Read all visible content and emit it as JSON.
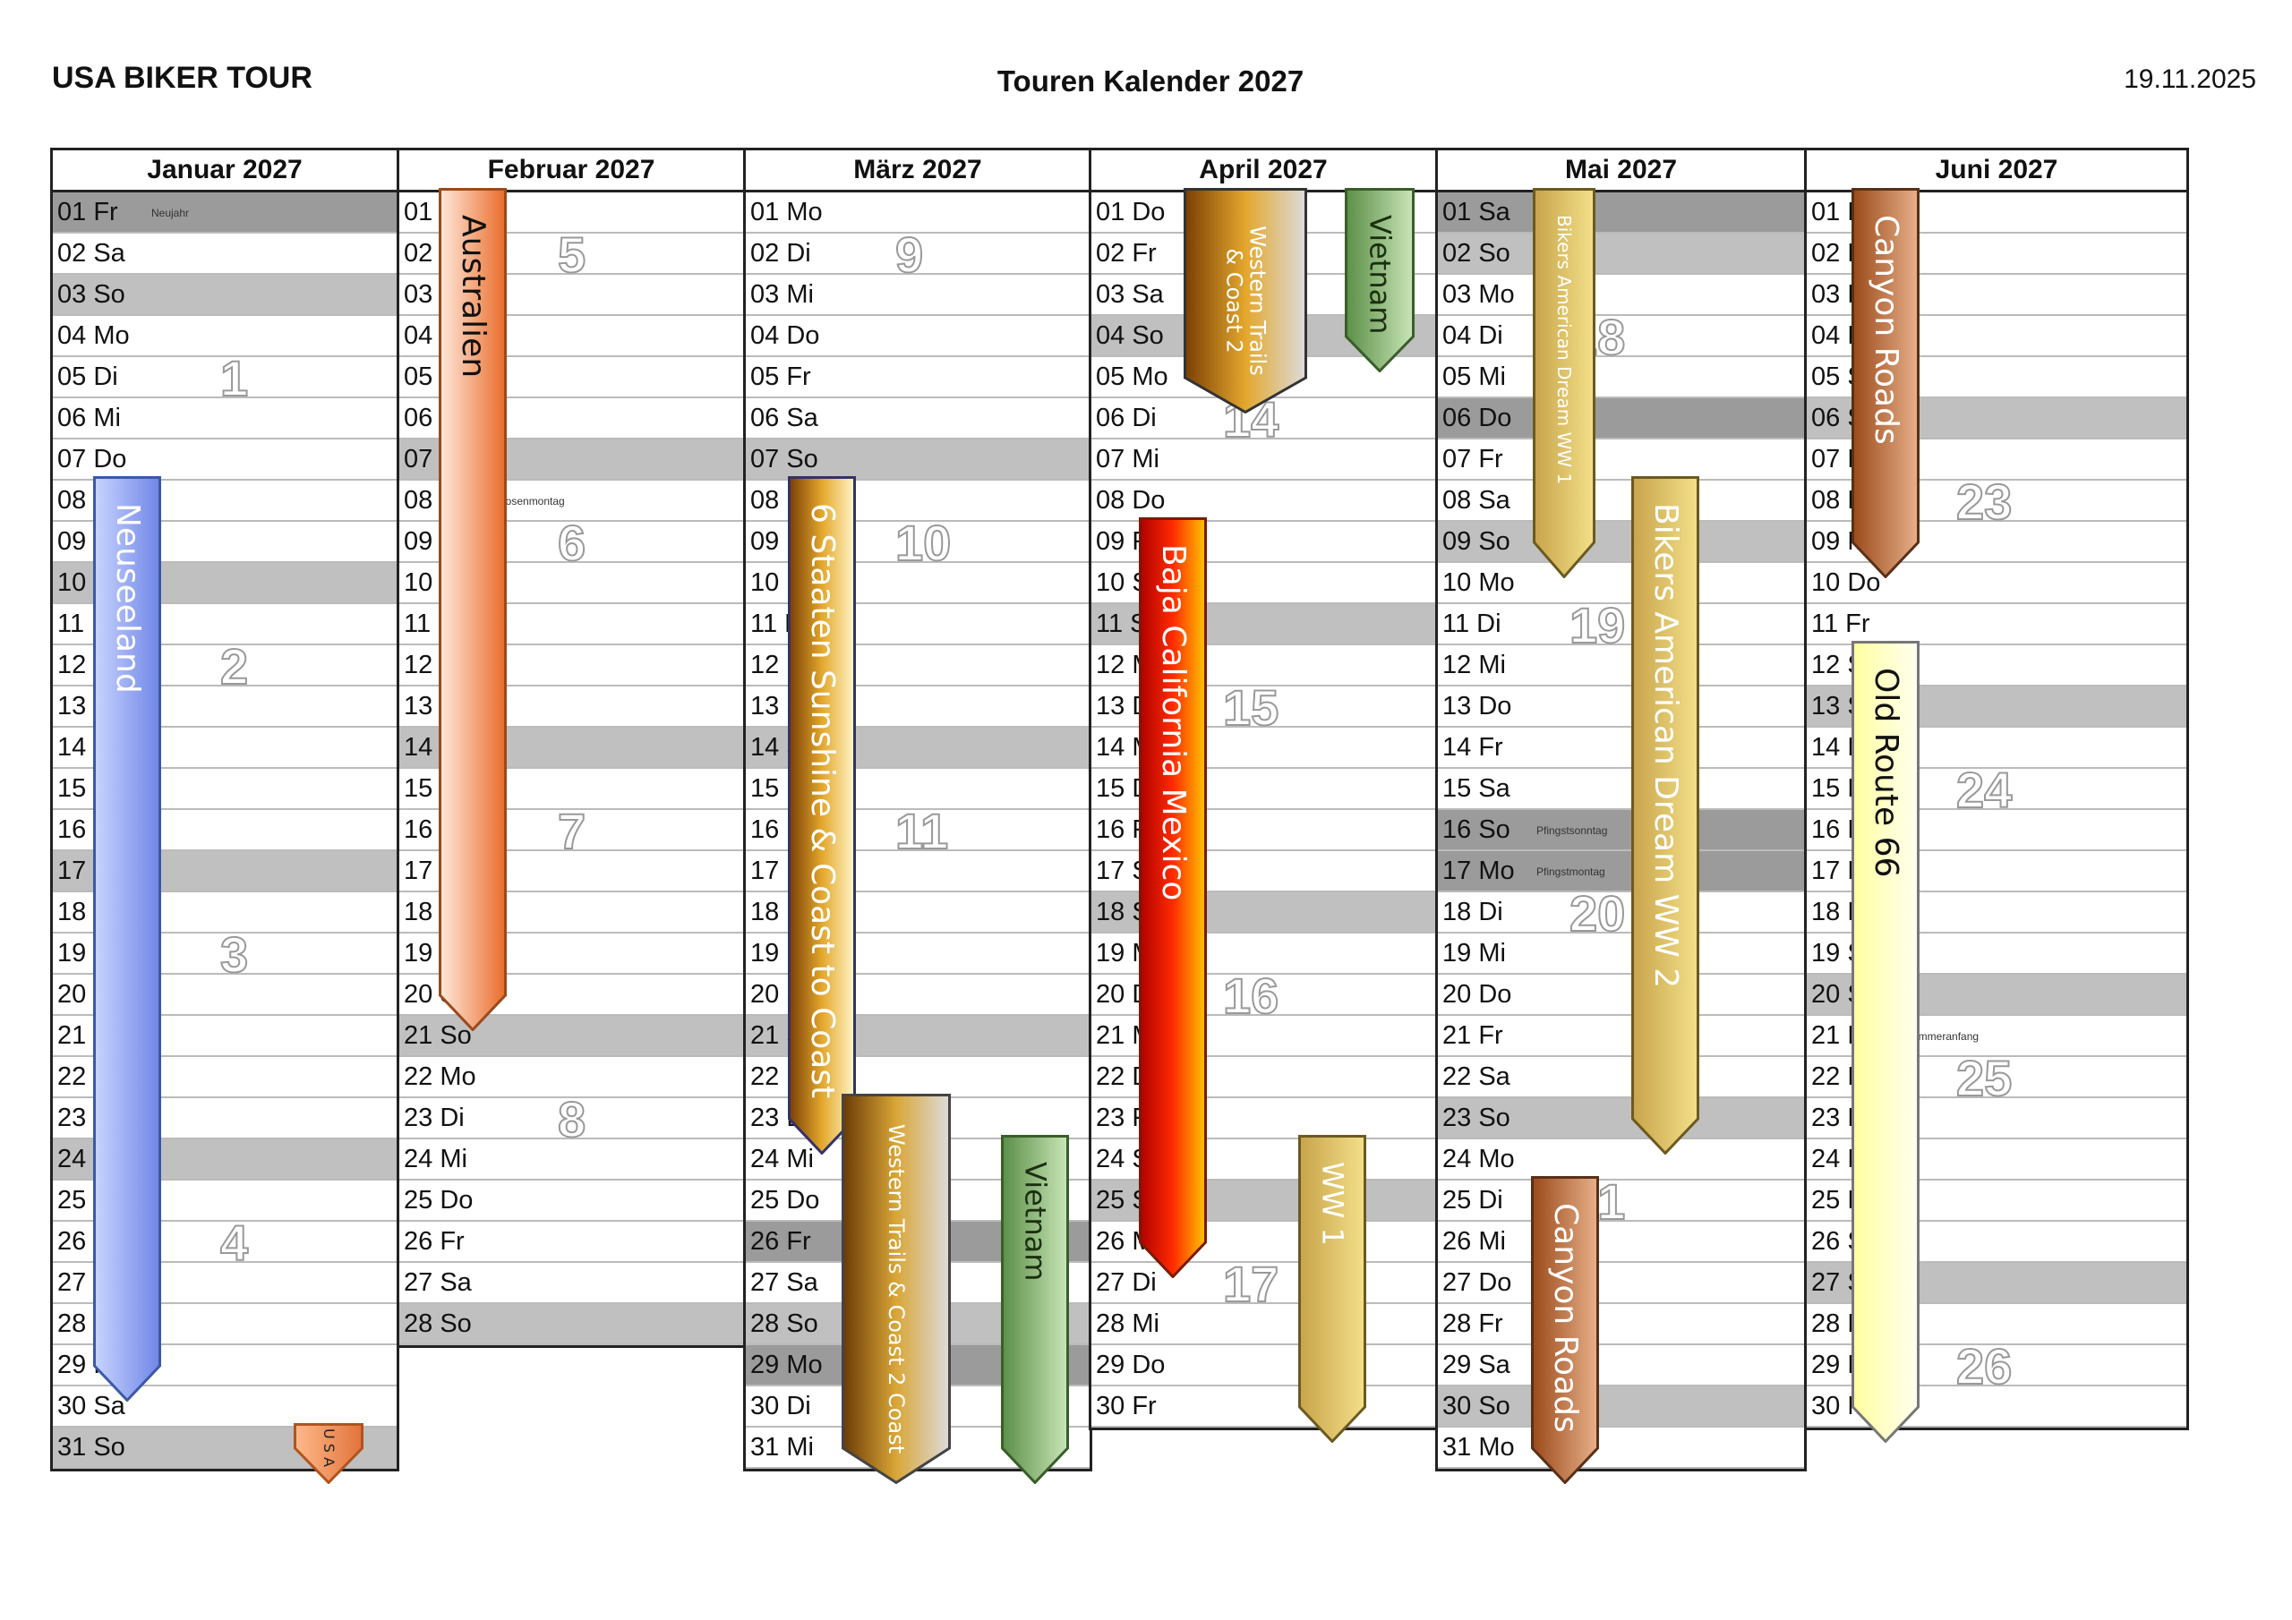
{
  "header": {
    "company": "USA BIKER TOUR",
    "title": "Touren Kalender 2027",
    "date": "19.11.2025"
  },
  "months": [
    {
      "name": "Januar 2027",
      "days": [
        {
          "l": "01 Fr",
          "t": "h",
          "hol": "Neujahr"
        },
        {
          "l": "02 Sa"
        },
        {
          "l": "03 So",
          "t": "w"
        },
        {
          "l": "04 Mo"
        },
        {
          "l": "05 Di"
        },
        {
          "l": "06 Mi"
        },
        {
          "l": "07 Do"
        },
        {
          "l": "08 Fr"
        },
        {
          "l": "09 Sa"
        },
        {
          "l": "10 So",
          "t": "w"
        },
        {
          "l": "11 Mo"
        },
        {
          "l": "12 Di"
        },
        {
          "l": "13 Mi"
        },
        {
          "l": "14 Do"
        },
        {
          "l": "15 Fr"
        },
        {
          "l": "16 Sa"
        },
        {
          "l": "17 So",
          "t": "w"
        },
        {
          "l": "18 Mo"
        },
        {
          "l": "19 Di"
        },
        {
          "l": "20 Mi"
        },
        {
          "l": "21 Do"
        },
        {
          "l": "22 Fr"
        },
        {
          "l": "23 Sa"
        },
        {
          "l": "24 So",
          "t": "w"
        },
        {
          "l": "25 Mo"
        },
        {
          "l": "26 Di"
        },
        {
          "l": "27 Mi"
        },
        {
          "l": "28 Do"
        },
        {
          "l": "29 Fr"
        },
        {
          "l": "30 Sa"
        },
        {
          "l": "31 So",
          "t": "w"
        }
      ]
    },
    {
      "name": "Februar 2027",
      "days": [
        {
          "l": "01 Mo"
        },
        {
          "l": "02 Di"
        },
        {
          "l": "03 Mi"
        },
        {
          "l": "04 Do"
        },
        {
          "l": "05 Fr"
        },
        {
          "l": "06 Sa"
        },
        {
          "l": "07 So",
          "t": "w"
        },
        {
          "l": "08 Mo",
          "hol": "Rosenmontag"
        },
        {
          "l": "09 Di"
        },
        {
          "l": "10 Mi"
        },
        {
          "l": "11 Do"
        },
        {
          "l": "12 Fr"
        },
        {
          "l": "13 Sa"
        },
        {
          "l": "14 So",
          "t": "w"
        },
        {
          "l": "15 Mo"
        },
        {
          "l": "16 Di"
        },
        {
          "l": "17 Mi"
        },
        {
          "l": "18 Do"
        },
        {
          "l": "19 Fr"
        },
        {
          "l": "20 Sa"
        },
        {
          "l": "21 So",
          "t": "w"
        },
        {
          "l": "22 Mo"
        },
        {
          "l": "23 Di"
        },
        {
          "l": "24 Mi"
        },
        {
          "l": "25 Do"
        },
        {
          "l": "26 Fr"
        },
        {
          "l": "27 Sa"
        },
        {
          "l": "28 So",
          "t": "w"
        }
      ]
    },
    {
      "name": "März 2027",
      "days": [
        {
          "l": "01 Mo"
        },
        {
          "l": "02 Di"
        },
        {
          "l": "03 Mi"
        },
        {
          "l": "04 Do"
        },
        {
          "l": "05 Fr"
        },
        {
          "l": "06 Sa"
        },
        {
          "l": "07 So",
          "t": "w"
        },
        {
          "l": "08 Mo"
        },
        {
          "l": "09 Di"
        },
        {
          "l": "10 Mi"
        },
        {
          "l": "11 Do"
        },
        {
          "l": "12 Fr"
        },
        {
          "l": "13 Sa"
        },
        {
          "l": "14 So",
          "t": "w"
        },
        {
          "l": "15 Mo"
        },
        {
          "l": "16 Di"
        },
        {
          "l": "17 Mi"
        },
        {
          "l": "18 Do"
        },
        {
          "l": "19 Fr"
        },
        {
          "l": "20 Sa"
        },
        {
          "l": "21 So",
          "t": "w"
        },
        {
          "l": "22 Mo"
        },
        {
          "l": "23 Di"
        },
        {
          "l": "24 Mi"
        },
        {
          "l": "25 Do"
        },
        {
          "l": "26 Fr",
          "t": "h"
        },
        {
          "l": "27 Sa"
        },
        {
          "l": "28 So",
          "t": "w",
          "hol": "Sommerzeit Beginn"
        },
        {
          "l": "29 Mo",
          "t": "h"
        },
        {
          "l": "30 Di"
        },
        {
          "l": "31 Mi"
        }
      ]
    },
    {
      "name": "April 2027",
      "days": [
        {
          "l": "01 Do"
        },
        {
          "l": "02 Fr"
        },
        {
          "l": "03 Sa"
        },
        {
          "l": "04 So",
          "t": "w"
        },
        {
          "l": "05 Mo"
        },
        {
          "l": "06 Di"
        },
        {
          "l": "07 Mi"
        },
        {
          "l": "08 Do"
        },
        {
          "l": "09 Fr"
        },
        {
          "l": "10 Sa"
        },
        {
          "l": "11 So",
          "t": "w"
        },
        {
          "l": "12 Mo"
        },
        {
          "l": "13 Di"
        },
        {
          "l": "14 Mi"
        },
        {
          "l": "15 Do"
        },
        {
          "l": "16 Fr"
        },
        {
          "l": "17 Sa"
        },
        {
          "l": "18 So",
          "t": "w"
        },
        {
          "l": "19 Mo"
        },
        {
          "l": "20 Di"
        },
        {
          "l": "21 Mi"
        },
        {
          "l": "22 Do"
        },
        {
          "l": "23 Fr"
        },
        {
          "l": "24 Sa"
        },
        {
          "l": "25 So",
          "t": "w"
        },
        {
          "l": "26 Mo"
        },
        {
          "l": "27 Di"
        },
        {
          "l": "28 Mi"
        },
        {
          "l": "29 Do"
        },
        {
          "l": "30 Fr"
        }
      ]
    },
    {
      "name": "Mai 2027",
      "days": [
        {
          "l": "01 Sa",
          "t": "h"
        },
        {
          "l": "02 So",
          "t": "w"
        },
        {
          "l": "03 Mo"
        },
        {
          "l": "04 Di"
        },
        {
          "l": "05 Mi"
        },
        {
          "l": "06 Do",
          "t": "h"
        },
        {
          "l": "07 Fr"
        },
        {
          "l": "08 Sa"
        },
        {
          "l": "09 So",
          "t": "w",
          "hol": "Muttertag"
        },
        {
          "l": "10 Mo"
        },
        {
          "l": "11 Di"
        },
        {
          "l": "12 Mi"
        },
        {
          "l": "13 Do"
        },
        {
          "l": "14 Fr"
        },
        {
          "l": "15 Sa"
        },
        {
          "l": "16 So",
          "t": "h",
          "hol": "Pfingstsonntag"
        },
        {
          "l": "17 Mo",
          "t": "h",
          "hol": "Pfingstmontag"
        },
        {
          "l": "18 Di"
        },
        {
          "l": "19 Mi"
        },
        {
          "l": "20 Do"
        },
        {
          "l": "21 Fr"
        },
        {
          "l": "22 Sa"
        },
        {
          "l": "23 So",
          "t": "w"
        },
        {
          "l": "24 Mo"
        },
        {
          "l": "25 Di"
        },
        {
          "l": "26 Mi"
        },
        {
          "l": "27 Do"
        },
        {
          "l": "28 Fr"
        },
        {
          "l": "29 Sa"
        },
        {
          "l": "30 So",
          "t": "w"
        },
        {
          "l": "31 Mo"
        }
      ]
    },
    {
      "name": "Juni 2027",
      "days": [
        {
          "l": "01 Di"
        },
        {
          "l": "02 Mi"
        },
        {
          "l": "03 Do"
        },
        {
          "l": "04 Fr"
        },
        {
          "l": "05 Sa"
        },
        {
          "l": "06 So",
          "t": "w"
        },
        {
          "l": "07 Mo"
        },
        {
          "l": "08 Di"
        },
        {
          "l": "09 Mi"
        },
        {
          "l": "10 Do"
        },
        {
          "l": "11 Fr"
        },
        {
          "l": "12 Sa"
        },
        {
          "l": "13 So",
          "t": "w"
        },
        {
          "l": "14 Mo"
        },
        {
          "l": "15 Di"
        },
        {
          "l": "16 Mi"
        },
        {
          "l": "17 Do"
        },
        {
          "l": "18 Fr"
        },
        {
          "l": "19 Sa"
        },
        {
          "l": "20 So",
          "t": "w"
        },
        {
          "l": "21 Mo",
          "hol": "Sommeranfang"
        },
        {
          "l": "22 Di"
        },
        {
          "l": "23 Mi"
        },
        {
          "l": "24 Do"
        },
        {
          "l": "25 Fr"
        },
        {
          "l": "26 Sa"
        },
        {
          "l": "27 So",
          "t": "w"
        },
        {
          "l": "28 Mo"
        },
        {
          "l": "29 Di"
        },
        {
          "l": "30 Mi"
        }
      ]
    }
  ],
  "week_numbers": [
    {
      "m": 0,
      "d": 5,
      "n": "1"
    },
    {
      "m": 0,
      "d": 12,
      "n": "2"
    },
    {
      "m": 0,
      "d": 19,
      "n": "3"
    },
    {
      "m": 0,
      "d": 26,
      "n": "4"
    },
    {
      "m": 1,
      "d": 2,
      "n": "5"
    },
    {
      "m": 1,
      "d": 9,
      "n": "6"
    },
    {
      "m": 1,
      "d": 16,
      "n": "7"
    },
    {
      "m": 1,
      "d": 23,
      "n": "8"
    },
    {
      "m": 2,
      "d": 2,
      "n": "9"
    },
    {
      "m": 2,
      "d": 9,
      "n": "10"
    },
    {
      "m": 2,
      "d": 16,
      "n": "11"
    },
    {
      "m": 2,
      "d": 23,
      "n": "12"
    },
    {
      "m": 2,
      "d": 30,
      "n": "13"
    },
    {
      "m": 3,
      "d": 6,
      "n": "14"
    },
    {
      "m": 3,
      "d": 13,
      "n": "15"
    },
    {
      "m": 3,
      "d": 20,
      "n": "16"
    },
    {
      "m": 3,
      "d": 27,
      "n": "17"
    },
    {
      "m": 4,
      "d": 4,
      "n": "18"
    },
    {
      "m": 4,
      "d": 11,
      "n": "19"
    },
    {
      "m": 4,
      "d": 18,
      "n": "20"
    },
    {
      "m": 4,
      "d": 25,
      "n": "21"
    },
    {
      "m": 5,
      "d": 8,
      "n": "23"
    },
    {
      "m": 5,
      "d": 15,
      "n": "24"
    },
    {
      "m": 5,
      "d": 22,
      "n": "25"
    },
    {
      "m": 5,
      "d": 29,
      "n": "26"
    }
  ],
  "tours": [
    {
      "m": 0,
      "col": 0,
      "start": 8,
      "end": 29,
      "name": "Neuseeland",
      "grad": [
        "#c9d4ff",
        "#6f86e6"
      ],
      "text": "#ffffff",
      "stroke": "#3a5aa8"
    },
    {
      "m": 0,
      "col": 2,
      "start": 31,
      "end": 31,
      "name": "U S A",
      "grad": [
        "#ffb98a",
        "#e2733c"
      ],
      "text": "#222222",
      "stroke": "#b0541e"
    },
    {
      "m": 1,
      "col": 0,
      "start": 1,
      "end": 20,
      "name": "Australien",
      "grad": [
        "#ffe9dc",
        "#e96c2a"
      ],
      "text": "#111111",
      "stroke": "#9a4a1b"
    },
    {
      "m": 2,
      "col": 0,
      "start": 8,
      "end": 23,
      "name": "6 Staaten Sunshine & Coast to Coast",
      "grad": [
        "#7a3f05",
        "#e3a72c",
        "#fff6c8"
      ],
      "text": "#ffffff",
      "stroke": "#333366"
    },
    {
      "m": 2,
      "col": 0,
      "start": 23,
      "end": 31,
      "name": "Western Trails & Coast 2 Coast",
      "grad": [
        "#6b3a05",
        "#d9a637",
        "#dcdcdc"
      ],
      "text": "#ffffff",
      "stroke": "#444444",
      "twoLine": true
    },
    {
      "m": 2,
      "col": 1,
      "start": 24,
      "end": 31,
      "name": "Vietnam",
      "grad": [
        "#5b8f47",
        "#c9e5b8"
      ],
      "text": "#1b3010",
      "stroke": "#3a5e2a"
    },
    {
      "m": 3,
      "col": 0,
      "start": 1,
      "end": 5,
      "name": "Western Trails & Coast 2",
      "grad": [
        "#7a3f05",
        "#e3a72c",
        "#dcdcdc"
      ],
      "text": "#ffffff",
      "stroke": "#333333",
      "twoLine": true
    },
    {
      "m": 3,
      "col": 1,
      "start": 1,
      "end": 4,
      "name": "Vietnam",
      "grad": [
        "#5b8f47",
        "#c9e5b8"
      ],
      "text": "#1b3010",
      "stroke": "#3a5e2a"
    },
    {
      "m": 3,
      "col": 0,
      "start": 9,
      "end": 26,
      "name": "Baja California Mexico",
      "grad": [
        "#b00000",
        "#ff2a00",
        "#ffc400"
      ],
      "text": "#ffffff",
      "stroke": "#7a1a00"
    },
    {
      "m": 3,
      "col": 1,
      "start": 24,
      "end": 30,
      "name": "WW 1",
      "grad": [
        "#c8a44a",
        "#f3e08a"
      ],
      "text": "#ffffff",
      "stroke": "#6b5a20"
    },
    {
      "m": 4,
      "col": 0,
      "start": 1,
      "end": 9,
      "name": "Bikers American Dream WW 1",
      "grad": [
        "#c8a44a",
        "#f3e08a"
      ],
      "text": "#ffffff",
      "stroke": "#6b5a20",
      "small": true
    },
    {
      "m": 4,
      "col": 1,
      "start": 8,
      "end": 23,
      "name": "Bikers American Dream WW 2",
      "grad": [
        "#c8a44a",
        "#f3e08a"
      ],
      "text": "#ffffff",
      "stroke": "#6b5a20"
    },
    {
      "m": 4,
      "col": 0,
      "start": 25,
      "end": 31,
      "name": "Canyon Roads",
      "grad": [
        "#9a4a1a",
        "#e8b08a"
      ],
      "text": "#ffffff",
      "stroke": "#5a3016"
    },
    {
      "m": 5,
      "col": 0,
      "start": 1,
      "end": 9,
      "name": "Canyon Roads",
      "grad": [
        "#9a4a1a",
        "#e8b08a"
      ],
      "text": "#ffffff",
      "stroke": "#5a3016"
    },
    {
      "m": 5,
      "col": 0,
      "start": 12,
      "end": 30,
      "name": "Old Route 66",
      "grad": [
        "#ffffa0",
        "#fffff0"
      ],
      "text": "#111111",
      "stroke": "#777777"
    }
  ]
}
